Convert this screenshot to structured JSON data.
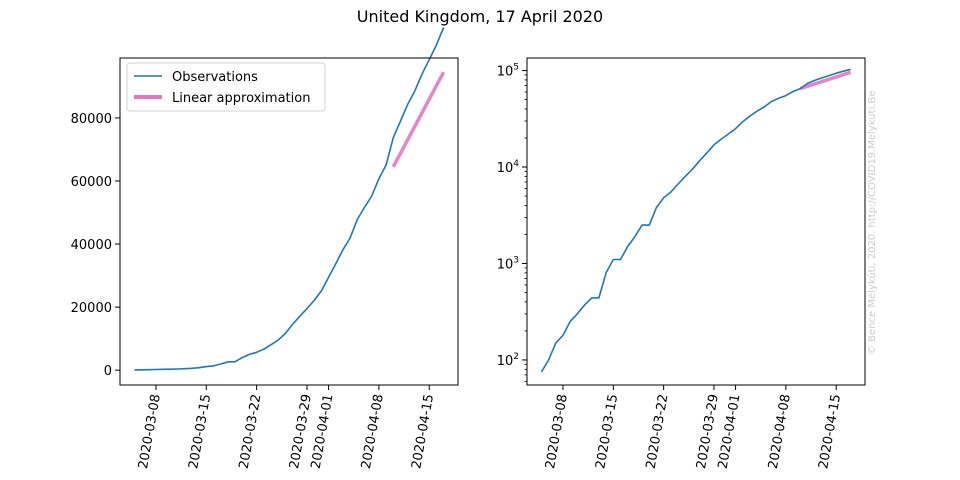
{
  "figure": {
    "title": "United Kingdom, 17 April 2020",
    "credit": "© Bence Mélykúti, 2020. http://COVID19.Melykuti.Be"
  },
  "colors": {
    "observations": "#1f77b4",
    "approximation": "#e377c2",
    "axes": "#000000",
    "credit": "#cccccc"
  },
  "chart_data": [
    {
      "type": "line",
      "scale": "linear",
      "x_tick_labels": [
        "2020-03-08",
        "2020-03-15",
        "2020-03-22",
        "2020-03-29",
        "2020-04-01",
        "2020-04-08",
        "2020-04-15"
      ],
      "y_tick_labels": [
        "0",
        "20000",
        "40000",
        "60000",
        "80000"
      ],
      "y_ticks": [
        0,
        20000,
        40000,
        60000,
        80000
      ],
      "xlim": [
        "2020-03-03",
        "2020-04-19"
      ],
      "ylim": [
        -4700,
        99000
      ],
      "legend": {
        "placement": "top-left",
        "entries": [
          {
            "label": "Observations",
            "series": "observations"
          },
          {
            "label": "Linear approximation",
            "series": "approximation"
          }
        ]
      },
      "series": [
        {
          "key": "observations",
          "x": [
            "2020-03-05",
            "2020-03-06",
            "2020-03-07",
            "2020-03-08",
            "2020-03-09",
            "2020-03-10",
            "2020-03-11",
            "2020-03-12",
            "2020-03-13",
            "2020-03-14",
            "2020-03-15",
            "2020-03-16",
            "2020-03-17",
            "2020-03-18",
            "2020-03-19",
            "2020-03-20",
            "2020-03-21",
            "2020-03-22",
            "2020-03-23",
            "2020-03-24",
            "2020-03-25",
            "2020-03-26",
            "2020-03-27",
            "2020-03-28",
            "2020-03-29",
            "2020-03-30",
            "2020-03-31",
            "2020-04-01",
            "2020-04-02",
            "2020-04-03",
            "2020-04-04",
            "2020-04-05",
            "2020-04-06",
            "2020-04-07",
            "2020-04-08",
            "2020-04-09",
            "2020-04-10",
            "2020-04-11",
            "2020-04-12",
            "2020-04-13",
            "2020-04-14",
            "2020-04-15",
            "2020-04-16",
            "2020-04-17"
          ],
          "values": [
            85,
            115,
            163,
            206,
            273,
            321,
            373,
            456,
            590,
            798,
            1140,
            1372,
            1950,
            2626,
            2689,
            3983,
            5018,
            5683,
            6650,
            8077,
            9529,
            11658,
            14543,
            17089,
            19522,
            22141,
            25150,
            29474,
            33718,
            38168,
            41903,
            47806,
            51608,
            55242,
            60733,
            65077,
            73758,
            78991,
            84279,
            88621,
            93873,
            98476,
            103093,
            108692
          ]
        },
        {
          "key": "approximation",
          "x": [
            "2020-04-10",
            "2020-04-17"
          ],
          "values": [
            64500,
            94500
          ]
        }
      ]
    },
    {
      "type": "line",
      "scale": "log",
      "x_tick_labels": [
        "2020-03-08",
        "2020-03-15",
        "2020-03-22",
        "2020-03-29",
        "2020-04-01",
        "2020-04-08",
        "2020-04-15"
      ],
      "y_tick_labels": [
        "10",
        "10",
        "10",
        "10"
      ],
      "y_tick_exponents": [
        "2",
        "3",
        "4",
        "5"
      ],
      "y_ticks": [
        100,
        1000,
        10000,
        100000
      ],
      "xlim": [
        "2020-03-03",
        "2020-04-19"
      ],
      "ylim": [
        55,
        135000
      ],
      "series": [
        {
          "key": "observations",
          "x": [
            "2020-03-05",
            "2020-03-06",
            "2020-03-07",
            "2020-03-08",
            "2020-03-09",
            "2020-03-10",
            "2020-03-11",
            "2020-03-12",
            "2020-03-13",
            "2020-03-14",
            "2020-03-15",
            "2020-03-16",
            "2020-03-17",
            "2020-03-18",
            "2020-03-19",
            "2020-03-20",
            "2020-03-21",
            "2020-03-22",
            "2020-03-23",
            "2020-03-24",
            "2020-03-25",
            "2020-03-26",
            "2020-03-27",
            "2020-03-28",
            "2020-03-29",
            "2020-03-30",
            "2020-03-31",
            "2020-04-01",
            "2020-04-02",
            "2020-04-03",
            "2020-04-04",
            "2020-04-05",
            "2020-04-06",
            "2020-04-07",
            "2020-04-08",
            "2020-04-09",
            "2020-04-10",
            "2020-04-11",
            "2020-04-12",
            "2020-04-13",
            "2020-04-14",
            "2020-04-15",
            "2020-04-16",
            "2020-04-17"
          ],
          "values": [
            75,
            100,
            150,
            180,
            250,
            300,
            370,
            440,
            440,
            800,
            1100,
            1100,
            1500,
            1900,
            2500,
            2500,
            3800,
            4800,
            5500,
            6650,
            8000,
            9500,
            11600,
            14000,
            17000,
            19500,
            22000,
            25000,
            29500,
            33700,
            38000,
            42000,
            47800,
            51600,
            55000,
            60700,
            65000,
            73700,
            79000,
            84000,
            88600,
            94000,
            98500,
            103000
          ]
        },
        {
          "key": "approximation",
          "x": [
            "2020-04-10",
            "2020-04-17"
          ],
          "values": [
            65000,
            96000
          ]
        }
      ]
    }
  ]
}
